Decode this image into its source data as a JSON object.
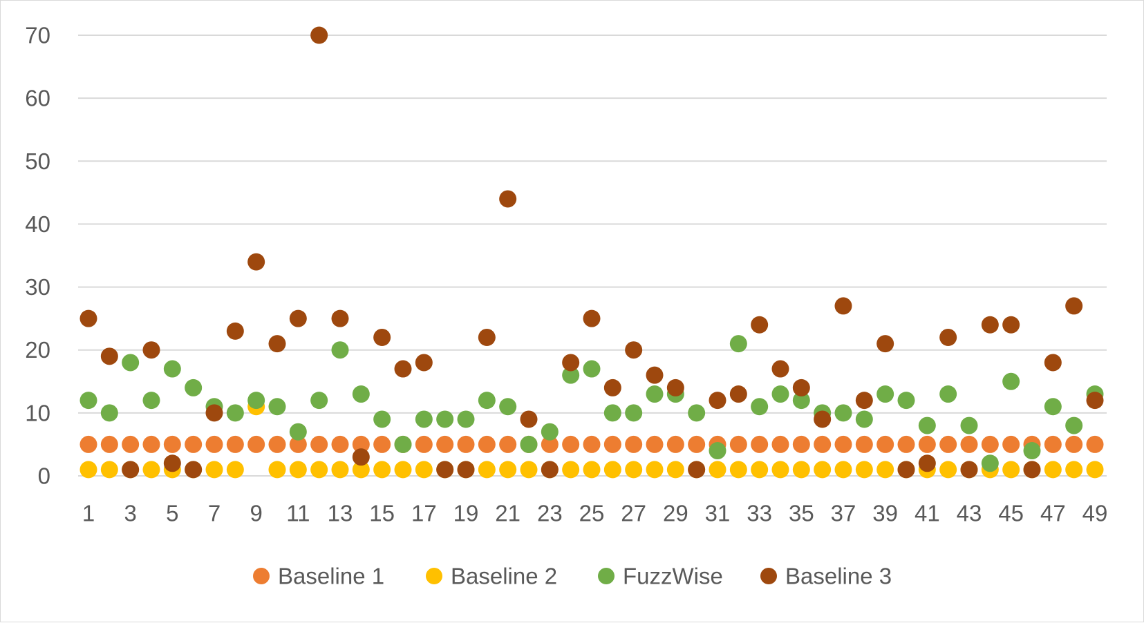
{
  "chart_data": {
    "type": "scatter",
    "title": "",
    "xlabel": "",
    "ylabel": "",
    "ylim": [
      0,
      70
    ],
    "yticks": [
      0,
      10,
      20,
      30,
      40,
      50,
      60,
      70
    ],
    "xlim": [
      1,
      49
    ],
    "xticks": [
      1,
      3,
      5,
      7,
      9,
      11,
      13,
      15,
      17,
      19,
      21,
      23,
      25,
      27,
      29,
      31,
      33,
      35,
      37,
      39,
      41,
      43,
      45,
      47,
      49
    ],
    "grid": true,
    "legend_position": "bottom",
    "x": [
      1,
      2,
      3,
      4,
      5,
      6,
      7,
      8,
      9,
      10,
      11,
      12,
      13,
      14,
      15,
      16,
      17,
      18,
      19,
      20,
      21,
      22,
      23,
      24,
      25,
      26,
      27,
      28,
      29,
      30,
      31,
      32,
      33,
      34,
      35,
      36,
      37,
      38,
      39,
      40,
      41,
      42,
      43,
      44,
      45,
      46,
      47,
      48,
      49
    ],
    "series": [
      {
        "name": "Baseline 1",
        "color": "#ED7D31",
        "values": [
          5,
          5,
          5,
          5,
          5,
          5,
          5,
          5,
          5,
          5,
          5,
          5,
          5,
          5,
          5,
          5,
          5,
          5,
          5,
          5,
          5,
          5,
          5,
          5,
          5,
          5,
          5,
          5,
          5,
          5,
          5,
          5,
          5,
          5,
          5,
          5,
          5,
          5,
          5,
          5,
          5,
          5,
          5,
          5,
          5,
          5,
          5,
          5,
          5
        ]
      },
      {
        "name": "Baseline 2",
        "color": "#FFC000",
        "values": [
          1,
          1,
          1,
          1,
          1,
          1,
          1,
          1,
          11,
          1,
          1,
          1,
          1,
          1,
          1,
          1,
          1,
          1,
          1,
          1,
          1,
          1,
          1,
          1,
          1,
          1,
          1,
          1,
          1,
          1,
          1,
          1,
          1,
          1,
          1,
          1,
          1,
          1,
          1,
          1,
          1,
          1,
          1,
          1,
          1,
          1,
          1,
          1,
          1
        ]
      },
      {
        "name": "FuzzWise",
        "color": "#70AD47",
        "values": [
          12,
          10,
          18,
          12,
          17,
          14,
          11,
          10,
          12,
          11,
          7,
          12,
          20,
          13,
          9,
          5,
          9,
          9,
          9,
          12,
          11,
          5,
          7,
          16,
          17,
          10,
          10,
          13,
          13,
          10,
          4,
          21,
          11,
          13,
          12,
          10,
          10,
          9,
          13,
          12,
          8,
          13,
          8,
          2,
          15,
          4,
          11,
          8,
          13
        ]
      },
      {
        "name": "Baseline 3",
        "color": "#9E480E",
        "values": [
          25,
          19,
          1,
          20,
          2,
          1,
          10,
          23,
          34,
          21,
          25,
          70,
          25,
          3,
          22,
          17,
          18,
          1,
          1,
          22,
          44,
          9,
          1,
          18,
          25,
          14,
          20,
          16,
          14,
          1,
          12,
          13,
          24,
          17,
          14,
          9,
          27,
          12,
          21,
          1,
          2,
          22,
          1,
          24,
          24,
          1,
          18,
          27,
          12
        ]
      }
    ]
  }
}
